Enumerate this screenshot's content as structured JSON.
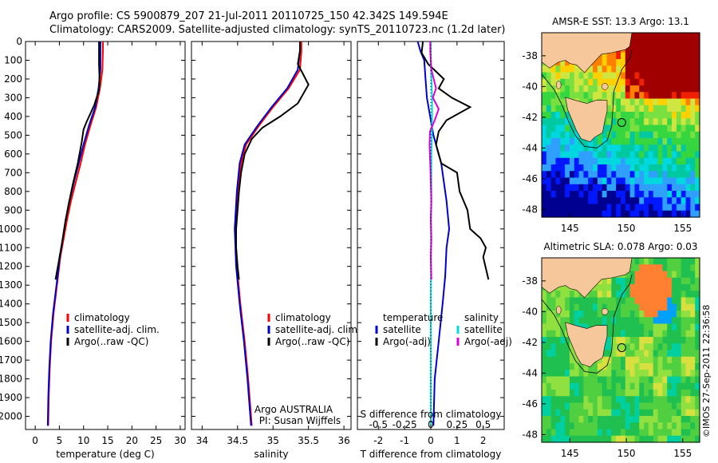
{
  "header": {
    "line1": "Argo profile: CS 5900879_207 21-Jul-2011 20110725_150 42.342S 149.594E",
    "line2": "Climatology: CARS2009. Satellite-adjusted climatology: synTS_20110723.nc (1.2d later)"
  },
  "chart_data": [
    {
      "type": "line",
      "panel": "temperature",
      "xlabel": "temperature (deg C)",
      "x_ticks": [
        "0",
        "5",
        "10",
        "15",
        "20",
        "25",
        "30"
      ],
      "xlim": [
        -2,
        31
      ],
      "y_ticks": [
        "0",
        "100",
        "200",
        "300",
        "400",
        "500",
        "600",
        "700",
        "800",
        "900",
        "1000",
        "1100",
        "1200",
        "1300",
        "1400",
        "1500",
        "1600",
        "1700",
        "1800",
        "1900",
        "2000"
      ],
      "ylim": [
        0,
        2070
      ],
      "legend": [
        "climatology",
        "satellite-adj. clim.",
        "Argo(..raw -QC)"
      ],
      "series": [
        {
          "name": "climatology",
          "color": "#ff0000",
          "points": [
            [
              14,
              0
            ],
            [
              14,
              50
            ],
            [
              13.9,
              150
            ],
            [
              13.4,
              250
            ],
            [
              12.6,
              350
            ],
            [
              11.4,
              450
            ],
            [
              10.3,
              550
            ],
            [
              9.4,
              650
            ],
            [
              8.4,
              750
            ],
            [
              7.4,
              850
            ],
            [
              6.6,
              950
            ],
            [
              5.9,
              1050
            ],
            [
              5.2,
              1150
            ],
            [
              4.5,
              1300
            ],
            [
              3.8,
              1450
            ],
            [
              3.3,
              1600
            ],
            [
              3,
              1750
            ],
            [
              2.8,
              1900
            ],
            [
              2.7,
              2050
            ]
          ]
        },
        {
          "name": "satellite-adj. clim.",
          "color": "#0000cc",
          "points": [
            [
              13.5,
              0
            ],
            [
              13.5,
              50
            ],
            [
              13.5,
              150
            ],
            [
              13.1,
              250
            ],
            [
              12.4,
              350
            ],
            [
              11.1,
              450
            ],
            [
              10,
              550
            ],
            [
              9,
              650
            ],
            [
              8,
              750
            ],
            [
              7.1,
              850
            ],
            [
              6.3,
              950
            ],
            [
              5.7,
              1050
            ],
            [
              5.1,
              1150
            ],
            [
              4.4,
              1300
            ],
            [
              3.7,
              1450
            ],
            [
              3.2,
              1600
            ],
            [
              2.9,
              1750
            ],
            [
              2.7,
              1900
            ],
            [
              2.6,
              2050
            ]
          ]
        },
        {
          "name": "Argo(..raw -QC)",
          "color": "#000000",
          "points": [
            [
              13.2,
              0
            ],
            [
              13.2,
              50
            ],
            [
              13.2,
              120
            ],
            [
              13.3,
              190
            ],
            [
              13.2,
              260
            ],
            [
              12.2,
              340
            ],
            [
              10.6,
              430
            ],
            [
              10,
              470
            ],
            [
              9.6,
              540
            ],
            [
              8.8,
              650
            ],
            [
              7.8,
              760
            ],
            [
              6.9,
              870
            ],
            [
              6.2,
              970
            ],
            [
              5.5,
              1080
            ],
            [
              4.7,
              1200
            ],
            [
              4.2,
              1270
            ]
          ]
        }
      ]
    },
    {
      "type": "line",
      "panel": "salinity",
      "xlabel": "salinity",
      "x_ticks": [
        "34",
        "34.5",
        "35",
        "35.5",
        "36"
      ],
      "xlim": [
        33.85,
        36.1
      ],
      "ylim": [
        0,
        2070
      ],
      "legend": [
        "climatology",
        "satellite-adj. clim.",
        "Argo(..raw -QC)"
      ],
      "annotation": [
        "Argo AUSTRALIA",
        "PI: Susan Wijffels"
      ],
      "series": [
        {
          "name": "climatology",
          "color": "#ff0000",
          "points": [
            [
              35.4,
              0
            ],
            [
              35.4,
              50
            ],
            [
              35.38,
              150
            ],
            [
              35.22,
              250
            ],
            [
              35.0,
              350
            ],
            [
              34.8,
              450
            ],
            [
              34.62,
              550
            ],
            [
              34.55,
              650
            ],
            [
              34.5,
              800
            ],
            [
              34.47,
              1000
            ],
            [
              34.49,
              1200
            ],
            [
              34.54,
              1400
            ],
            [
              34.6,
              1600
            ],
            [
              34.65,
              1800
            ],
            [
              34.7,
              2050
            ]
          ]
        },
        {
          "name": "satellite-adj. clim.",
          "color": "#0000cc",
          "points": [
            [
              35.38,
              0
            ],
            [
              35.38,
              50
            ],
            [
              35.35,
              150
            ],
            [
              35.2,
              250
            ],
            [
              34.98,
              350
            ],
            [
              34.78,
              450
            ],
            [
              34.6,
              550
            ],
            [
              34.53,
              650
            ],
            [
              34.49,
              800
            ],
            [
              34.46,
              1000
            ],
            [
              34.48,
              1200
            ],
            [
              34.53,
              1400
            ],
            [
              34.59,
              1600
            ],
            [
              34.64,
              1800
            ],
            [
              34.69,
              2050
            ]
          ]
        },
        {
          "name": "Argo(..raw -QC)",
          "color": "#000000",
          "points": [
            [
              35.38,
              0
            ],
            [
              35.38,
              50
            ],
            [
              35.35,
              120
            ],
            [
              35.5,
              230
            ],
            [
              35.35,
              330
            ],
            [
              35.1,
              400
            ],
            [
              34.85,
              460
            ],
            [
              34.7,
              520
            ],
            [
              34.6,
              600
            ],
            [
              34.55,
              700
            ],
            [
              34.52,
              800
            ],
            [
              34.5,
              900
            ],
            [
              34.48,
              1000
            ],
            [
              34.48,
              1100
            ],
            [
              34.5,
              1200
            ],
            [
              34.52,
              1270
            ]
          ]
        }
      ]
    },
    {
      "type": "line",
      "panel": "differences",
      "xlabel": "T difference from climatology",
      "xlabel_top": "S difference from climatology",
      "x_ticks": [
        "-2",
        "-1",
        "0",
        "1",
        "2"
      ],
      "x_ticks_s": [
        "-0.5",
        "-0.25",
        "0",
        "0.25",
        "0.5"
      ],
      "xlim": [
        -2.8,
        2.8
      ],
      "ylim": [
        0,
        2070
      ],
      "legend_t_title": "temperature",
      "legend_s_title": "salinity",
      "legend_t": [
        "satellite",
        "Argo(-adj)"
      ],
      "legend_s": [
        "satellite",
        "Argo(-adj)"
      ],
      "series": [
        {
          "name": "T satellite",
          "color": "#0000cc",
          "points": [
            [
              -0.5,
              0
            ],
            [
              -0.4,
              50
            ],
            [
              -0.25,
              100
            ],
            [
              -0.2,
              200
            ],
            [
              -0.15,
              300
            ],
            [
              0.1,
              500
            ],
            [
              0.4,
              650
            ],
            [
              0.5,
              750
            ],
            [
              0.6,
              850
            ],
            [
              0.7,
              1000
            ],
            [
              0.6,
              1100
            ],
            [
              0.55,
              1250
            ],
            [
              0.45,
              1400
            ],
            [
              0.3,
              1600
            ],
            [
              0.15,
              1800
            ],
            [
              0.1,
              2050
            ]
          ]
        },
        {
          "name": "T Argo(-adj)",
          "color": "#000000",
          "points": [
            [
              -0.3,
              0
            ],
            [
              -0.35,
              60
            ],
            [
              -0.1,
              120
            ],
            [
              0.5,
              200
            ],
            [
              0.3,
              250
            ],
            [
              0.8,
              300
            ],
            [
              1.5,
              350
            ],
            [
              0.6,
              420
            ],
            [
              0.3,
              480
            ],
            [
              0.2,
              550
            ],
            [
              0.4,
              650
            ],
            [
              1.0,
              700
            ],
            [
              1.1,
              800
            ],
            [
              1.4,
              900
            ],
            [
              1.5,
              1000
            ],
            [
              1.9,
              1050
            ],
            [
              2.1,
              1100
            ],
            [
              2.0,
              1150
            ],
            [
              2.2,
              1270
            ]
          ]
        },
        {
          "name": "S satellite",
          "color": "#00dddd",
          "points": [
            [
              0,
              0
            ],
            [
              0,
              100
            ],
            [
              0.02,
              200
            ],
            [
              0.05,
              300
            ],
            [
              0.05,
              450
            ],
            [
              0.02,
              600
            ],
            [
              0.02,
              800
            ],
            [
              0.01,
              1000
            ],
            [
              0.01,
              1200
            ],
            [
              0,
              1400
            ],
            [
              0,
              1600
            ],
            [
              0,
              1800
            ],
            [
              0,
              2050
            ]
          ]
        },
        {
          "name": "S Argo(-adj)",
          "color": "#dd00dd",
          "points": [
            [
              -0.02,
              0
            ],
            [
              -0.02,
              50
            ],
            [
              0.02,
              150
            ],
            [
              0.2,
              250
            ],
            [
              0.08,
              300
            ],
            [
              0.3,
              360
            ],
            [
              0.15,
              420
            ],
            [
              -0.03,
              480
            ],
            [
              -0.05,
              550
            ],
            [
              -0.02,
              650
            ],
            [
              0,
              750
            ],
            [
              0.02,
              850
            ],
            [
              0,
              950
            ],
            [
              0.02,
              1050
            ],
            [
              0,
              1150
            ],
            [
              0.02,
              1270
            ]
          ]
        }
      ]
    },
    {
      "type": "heatmap",
      "panel": "sst-map",
      "title": "AMSR-E SST: 13.3 Argo: 13.1",
      "x_ticks": [
        "145",
        "150",
        "155"
      ],
      "y_ticks": [
        "-38",
        "-40",
        "-42",
        "-44",
        "-46",
        "-48"
      ],
      "xlim": [
        142.5,
        156.5
      ],
      "ylim": [
        -48.5,
        -36.5
      ],
      "argo_location": [
        149.594,
        -42.342
      ]
    },
    {
      "type": "heatmap",
      "panel": "sla-map",
      "title": "Altimetric SLA: 0.078 Argo: 0.03",
      "x_ticks": [
        "145",
        "150",
        "155"
      ],
      "y_ticks": [
        "-38",
        "-40",
        "-42",
        "-44",
        "-46",
        "-48"
      ],
      "xlim": [
        142.5,
        156.5
      ],
      "ylim": [
        -48.5,
        -36.5
      ],
      "argo_location": [
        149.594,
        -42.342
      ]
    }
  ],
  "footer_stamp": "©IMOS 27-Sep-2011 22:36:58"
}
